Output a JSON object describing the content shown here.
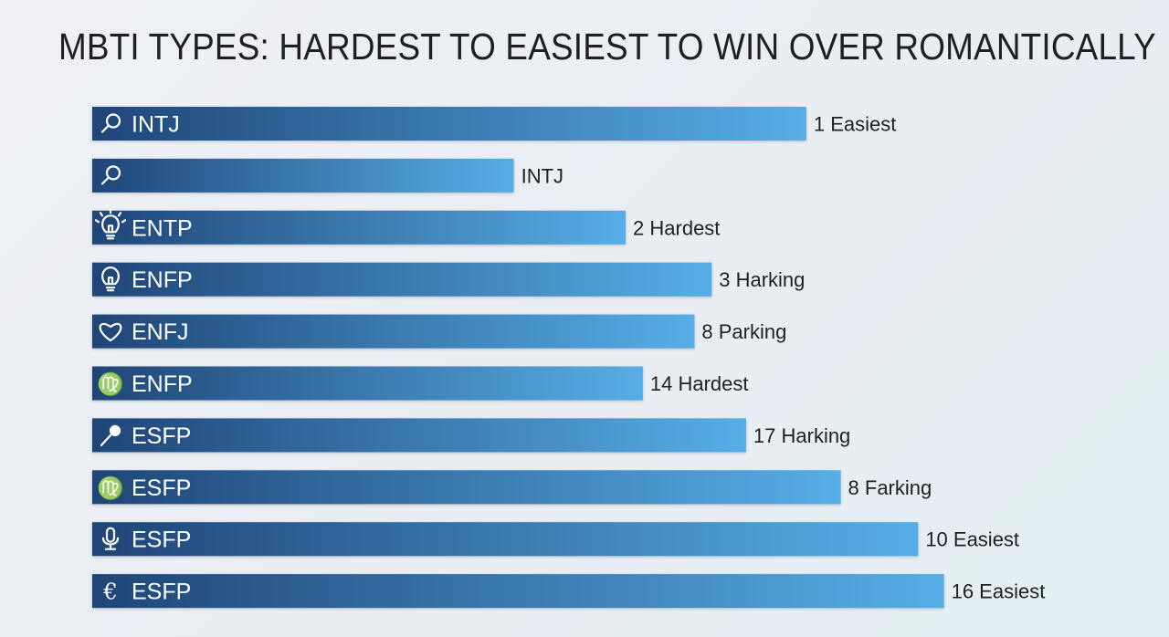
{
  "chart_data": {
    "type": "bar",
    "orientation": "horizontal",
    "title": "MBTI TYPES: HARDEST TO EASIEST TO WIN OVER ROMANTICALLY",
    "xlabel": "",
    "ylabel": "",
    "xlim": [
      0,
      100
    ],
    "grid": false,
    "legend": "none",
    "bar_gradient": [
      "#1f4577",
      "#57aee6"
    ],
    "bars": [
      {
        "label": "INTJ",
        "icon": "magnifier-icon",
        "value_label": "1 Easiest",
        "value": 83
      },
      {
        "label": "",
        "icon": "magnifier-icon",
        "value_label": "INTJ",
        "value": 49
      },
      {
        "label": "ENTP",
        "icon": "lightbulb-shine-icon",
        "value_label": "2 Hardest",
        "value": 62
      },
      {
        "label": "ENFP",
        "icon": "lightbulb-icon",
        "value_label": "3 Harking",
        "value": 72
      },
      {
        "label": "ENFJ",
        "icon": "heart-icon",
        "value_label": "8 Parking",
        "value": 70
      },
      {
        "label": "ENFP",
        "icon": "virgo-glyph-icon",
        "value_label": "14 Hardest",
        "value": 64
      },
      {
        "label": "ESFP",
        "icon": "microphone-icon",
        "value_label": "17 Harking",
        "value": 76
      },
      {
        "label": "ESFP",
        "icon": "virgo-glyph-icon",
        "value_label": "8 Farking",
        "value": 87
      },
      {
        "label": "ESFP",
        "icon": "studio-mic-icon",
        "value_label": "10 Easiest",
        "value": 96
      },
      {
        "label": "ESFP",
        "icon": "euro-glyph-icon",
        "value_label": "16 Easiest",
        "value": 99
      }
    ]
  }
}
